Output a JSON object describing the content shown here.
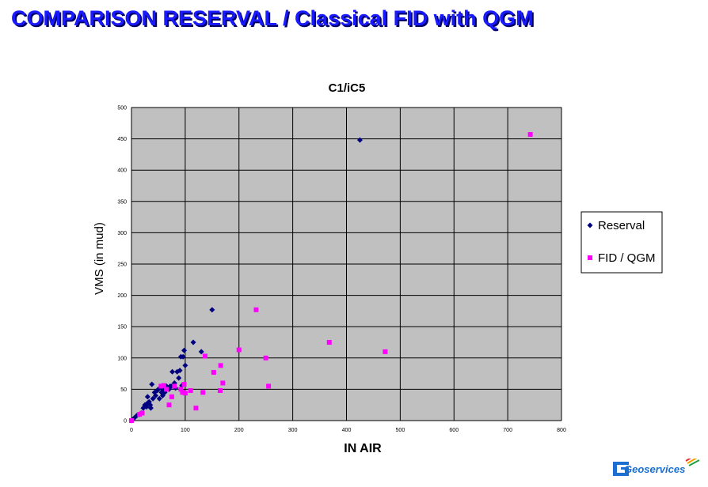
{
  "page": {
    "title": "COMPARISON RESERVAL / Classical FID with QGM"
  },
  "logo_text": "Geoservices",
  "chart_data": {
    "type": "scatter",
    "title": "C1/iC5",
    "xlabel": "IN AIR",
    "ylabel": "VMS (in mud)",
    "xlim": [
      0,
      800
    ],
    "ylim": [
      0,
      500
    ],
    "xticks": [
      0,
      100,
      200,
      300,
      400,
      500,
      600,
      700,
      800
    ],
    "yticks": [
      0,
      50,
      100,
      150,
      200,
      250,
      300,
      350,
      400,
      450,
      500
    ],
    "grid": true,
    "plot_background": "#c0c0c0",
    "legend_position": "right",
    "series": [
      {
        "name": "Reserval",
        "color": "#000080",
        "marker": "diamond",
        "points": [
          [
            0,
            0
          ],
          [
            5,
            4
          ],
          [
            10,
            8
          ],
          [
            15,
            10
          ],
          [
            18,
            12
          ],
          [
            22,
            20
          ],
          [
            25,
            25
          ],
          [
            28,
            22
          ],
          [
            30,
            28
          ],
          [
            30,
            38
          ],
          [
            33,
            30
          ],
          [
            35,
            25
          ],
          [
            36,
            20
          ],
          [
            38,
            58
          ],
          [
            40,
            35
          ],
          [
            43,
            45
          ],
          [
            45,
            40
          ],
          [
            48,
            48
          ],
          [
            50,
            50
          ],
          [
            52,
            35
          ],
          [
            55,
            52
          ],
          [
            56,
            45
          ],
          [
            58,
            40
          ],
          [
            60,
            48
          ],
          [
            62,
            45
          ],
          [
            65,
            55
          ],
          [
            68,
            52
          ],
          [
            70,
            50
          ],
          [
            72,
            55
          ],
          [
            75,
            55
          ],
          [
            76,
            78
          ],
          [
            80,
            60
          ],
          [
            82,
            52
          ],
          [
            85,
            78
          ],
          [
            88,
            68
          ],
          [
            90,
            80
          ],
          [
            92,
            102
          ],
          [
            94,
            56
          ],
          [
            96,
            102
          ],
          [
            98,
            112
          ],
          [
            100,
            88
          ],
          [
            130,
            110
          ],
          [
            115,
            125
          ],
          [
            150,
            177
          ],
          [
            425,
            448
          ]
        ]
      },
      {
        "name": "FID / QGM",
        "color": "#ff00ff",
        "marker": "square",
        "points": [
          [
            0,
            0
          ],
          [
            15,
            10
          ],
          [
            20,
            12
          ],
          [
            55,
            55
          ],
          [
            60,
            56
          ],
          [
            65,
            50
          ],
          [
            70,
            25
          ],
          [
            75,
            38
          ],
          [
            80,
            55
          ],
          [
            92,
            50
          ],
          [
            95,
            45
          ],
          [
            98,
            58
          ],
          [
            100,
            44
          ],
          [
            110,
            48
          ],
          [
            120,
            20
          ],
          [
            133,
            45
          ],
          [
            137,
            103
          ],
          [
            153,
            77
          ],
          [
            165,
            48
          ],
          [
            166,
            88
          ],
          [
            170,
            60
          ],
          [
            200,
            113
          ],
          [
            232,
            177
          ],
          [
            250,
            100
          ],
          [
            255,
            55
          ],
          [
            368,
            125
          ],
          [
            472,
            110
          ],
          [
            742,
            457
          ]
        ]
      }
    ]
  }
}
